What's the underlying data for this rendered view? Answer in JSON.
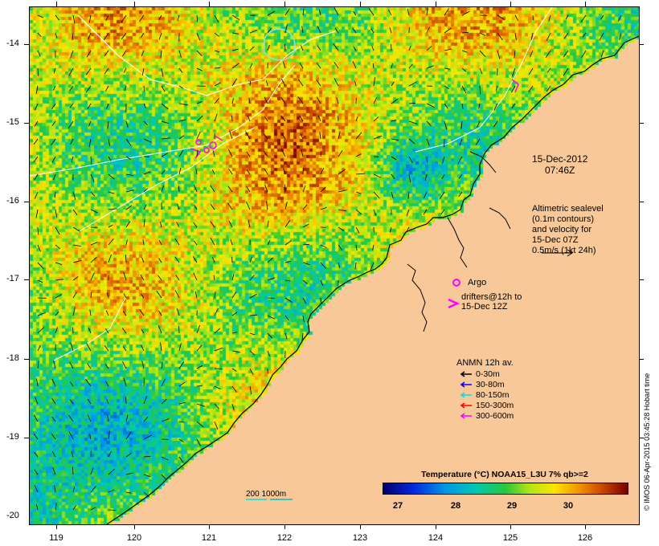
{
  "map": {
    "y_ticks": [
      "-14",
      "-15",
      "-16",
      "-17",
      "-18",
      "-19",
      "-20"
    ],
    "x_ticks": [
      "119",
      "120",
      "121",
      "122",
      "123",
      "124",
      "125",
      "126"
    ],
    "date_label": "15-Dec-2012",
    "time_label": "07:46Z",
    "altimetric": [
      "Altimetric sealevel",
      "(0.1m contours)",
      "and velocity for",
      "15-Dec 07Z",
      "0.5m/s (1kt 24h)"
    ],
    "argo_label": "Argo",
    "drifters": [
      "drifters@12h to",
      "15-Dec 12Z"
    ],
    "anmn_title": "ANMN 12h av.",
    "anmn_items": [
      {
        "label": "0-30m",
        "color": "#000000"
      },
      {
        "label": "30-80m",
        "color": "#0000ff"
      },
      {
        "label": "80-150m",
        "color": "#00e0e0"
      },
      {
        "label": "150-300m",
        "color": "#ff0000"
      },
      {
        "label": "300-600m",
        "color": "#ff00ff"
      }
    ],
    "scale_label": "200  1000m",
    "colorbar_title": "Temperature (°C) NOAA15_L3U 7% qb>=2",
    "colorbar_ticks": [
      "27",
      "28",
      "29",
      "30"
    ],
    "credit": "© IMOS 06-Apr-2015 03:45:28 Hobart time",
    "colors": {
      "land": "#f8c898",
      "argo": "#ff00ff",
      "contour": "#ffffff",
      "coast": "#000000"
    }
  }
}
